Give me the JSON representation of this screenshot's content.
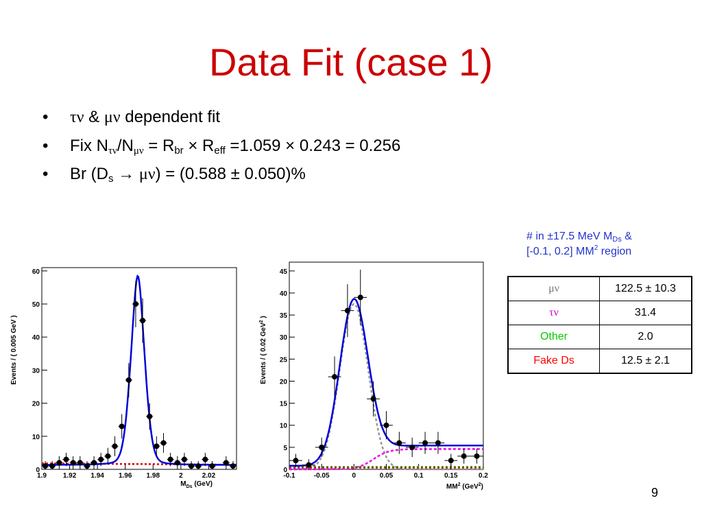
{
  "title": "Data Fit (case 1)",
  "bullets": [
    {
      "dot": "•",
      "b1_sym1": "τν",
      "b1_mid": " & ",
      "b1_sym2": "μν",
      "b1_text": " dependent fit"
    },
    {
      "dot": "•",
      "b2_fix": "Fix N",
      "b2_sub1": "τν",
      "b2_slash": "/N",
      "b2_sub2": "μν",
      "b2_eq": " = R",
      "b2_sub3": "br",
      "b2_times": " × R",
      "b2_sub4": "eff",
      "b2_val": " =1.059 × 0.243 = 0.256"
    },
    {
      "dot": "•",
      "b3_br": "Br (D",
      "b3_sub": "s",
      "b3_arrow": " → ",
      "b3_sym": "μν",
      "b3_val": ") = (0.588 ± 0.050)%"
    }
  ],
  "note": {
    "line1_a": "# in ±17.5 MeV M",
    "line1_sub": "Ds",
    "line1_b": " &",
    "line2_a": "[-0.1, 0.2] MM",
    "line2_sup": "2",
    "line2_b": " region"
  },
  "table": {
    "rows": [
      {
        "label": "μν",
        "value": "122.5 ± 10.3",
        "color": "#777777"
      },
      {
        "label": "τν",
        "value": "31.4",
        "color": "#cc00cc"
      },
      {
        "label": "Other",
        "value": "2.0",
        "color": "#00cc00"
      },
      {
        "label": "Fake Ds",
        "value": "12.5 ± 2.1",
        "color": "#ff0000"
      }
    ]
  },
  "page_number": "9",
  "colors": {
    "title": "#cc0000",
    "fit_curve": "#0000dd",
    "mu_nu_component": "#999999",
    "tau_nu_component": "#ee00ee",
    "other_component": "#00bb00",
    "fake_ds_component": "#dd0000"
  },
  "chart_data": [
    {
      "type": "scatter",
      "xlabel": "M",
      "xlabel_sub": "Ds",
      "xlabel_unit": " (GeV)",
      "ylabel": "Events / ( 0.005 GeV )",
      "xlim": [
        1.9,
        2.04
      ],
      "ylim": [
        0,
        61
      ],
      "x_ticks": [
        1.9,
        1.92,
        1.94,
        1.96,
        1.98,
        2.0,
        2.02
      ],
      "x_tick_labels": [
        "1.9",
        "1.92",
        "1.94",
        "1.96",
        "1.98",
        "2",
        "2.02"
      ],
      "y_ticks": [
        0,
        10,
        20,
        30,
        40,
        50,
        60
      ],
      "y_tick_labels": [
        "0",
        "10",
        "20",
        "30",
        "40",
        "50",
        "60"
      ],
      "points": [
        {
          "x": 1.9025,
          "y": 1,
          "err": 1.5
        },
        {
          "x": 1.9075,
          "y": 1,
          "err": 1.5
        },
        {
          "x": 1.9125,
          "y": 2,
          "err": 2
        },
        {
          "x": 1.9175,
          "y": 3,
          "err": 2
        },
        {
          "x": 1.9225,
          "y": 2,
          "err": 2
        },
        {
          "x": 1.9275,
          "y": 2,
          "err": 2
        },
        {
          "x": 1.9325,
          "y": 1,
          "err": 1.5
        },
        {
          "x": 1.9375,
          "y": 2,
          "err": 2
        },
        {
          "x": 1.9425,
          "y": 3,
          "err": 2
        },
        {
          "x": 1.9475,
          "y": 4,
          "err": 2.5
        },
        {
          "x": 1.9525,
          "y": 7,
          "err": 3
        },
        {
          "x": 1.9575,
          "y": 13,
          "err": 3.7
        },
        {
          "x": 1.9625,
          "y": 27,
          "err": 5.2
        },
        {
          "x": 1.9675,
          "y": 50,
          "err": 7
        },
        {
          "x": 1.9725,
          "y": 45,
          "err": 6.7
        },
        {
          "x": 1.9775,
          "y": 16,
          "err": 4
        },
        {
          "x": 1.9825,
          "y": 7,
          "err": 3
        },
        {
          "x": 1.9875,
          "y": 8,
          "err": 3
        },
        {
          "x": 1.9925,
          "y": 3,
          "err": 2
        },
        {
          "x": 1.9975,
          "y": 2,
          "err": 2
        },
        {
          "x": 2.0025,
          "y": 3,
          "err": 2
        },
        {
          "x": 2.0075,
          "y": 1,
          "err": 1.5
        },
        {
          "x": 2.0125,
          "y": 1,
          "err": 1.5
        },
        {
          "x": 2.0175,
          "y": 3,
          "err": 2
        },
        {
          "x": 2.0225,
          "y": 1,
          "err": 1.5
        },
        {
          "x": 2.0325,
          "y": 2,
          "err": 2
        },
        {
          "x": 2.0375,
          "y": 1,
          "err": 1.5
        }
      ],
      "fit_curve": {
        "peak_x": 1.969,
        "peak_y": 58.5,
        "width": 0.0052,
        "baseline": 1.3
      },
      "background_line": {
        "y_start": 1.8,
        "y_end": 1.4
      }
    },
    {
      "type": "scatter",
      "xlabel": "MM",
      "xlabel_sup": "2",
      "xlabel_unit_a": " (GeV",
      "xlabel_unit_sup": "2",
      "xlabel_unit_b": ")",
      "ylabel_a": "Events / ( 0.02 GeV",
      "ylabel_sup": "2",
      "ylabel_b": " )",
      "xlim": [
        -0.1,
        0.2
      ],
      "ylim": [
        0,
        47
      ],
      "x_ticks": [
        -0.1,
        -0.05,
        0,
        0.05,
        0.1,
        0.15,
        0.2
      ],
      "x_tick_labels": [
        "-0.1",
        "-0.05",
        "0",
        "0.05",
        "0.1",
        "0.15",
        "0.2"
      ],
      "y_ticks": [
        0,
        5,
        10,
        15,
        20,
        25,
        30,
        35,
        40,
        45
      ],
      "y_tick_labels": [
        "0",
        "5",
        "10",
        "15",
        "20",
        "25",
        "30",
        "35",
        "40",
        "45"
      ],
      "points": [
        {
          "x": -0.09,
          "y": 2,
          "err": 1.5
        },
        {
          "x": -0.07,
          "y": 1,
          "err": 1.3
        },
        {
          "x": -0.05,
          "y": 5,
          "err": 2.2
        },
        {
          "x": -0.03,
          "y": 21,
          "err": 4.6
        },
        {
          "x": -0.01,
          "y": 36,
          "err": 6
        },
        {
          "x": 0.01,
          "y": 39,
          "err": 6.3
        },
        {
          "x": 0.03,
          "y": 16,
          "err": 4
        },
        {
          "x": 0.05,
          "y": 10,
          "err": 3.2
        },
        {
          "x": 0.07,
          "y": 6,
          "err": 2.5
        },
        {
          "x": 0.09,
          "y": 5,
          "err": 2.2
        },
        {
          "x": 0.11,
          "y": 6,
          "err": 2.5
        },
        {
          "x": 0.13,
          "y": 6,
          "err": 2.5
        },
        {
          "x": 0.15,
          "y": 2,
          "err": 1.5
        },
        {
          "x": 0.17,
          "y": 3,
          "err": 1.7
        },
        {
          "x": 0.19,
          "y": 3,
          "err": 1.7
        }
      ],
      "components": {
        "mu_nu": {
          "peak_x": 0.0,
          "peak_y": 37.5,
          "width": 0.022
        },
        "tau_nu": {
          "rise_center": 0.03,
          "plateau": 4.6
        },
        "total_tail": 0.8
      }
    }
  ]
}
